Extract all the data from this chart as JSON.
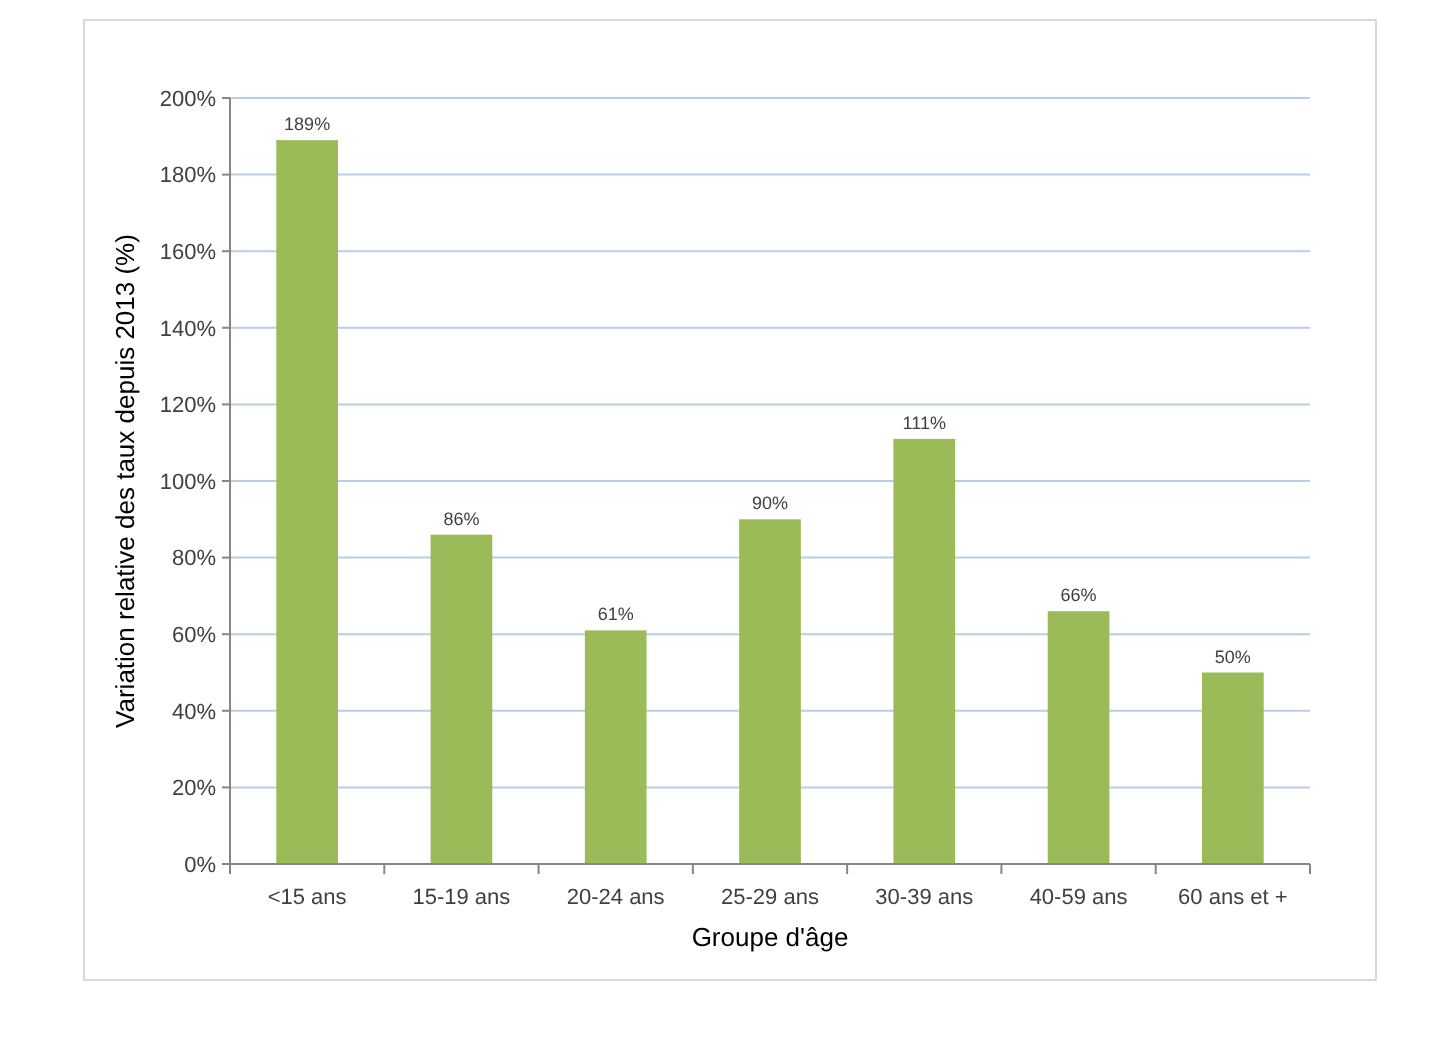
{
  "chart_data": {
    "type": "bar",
    "xlabel": "Groupe d'âge",
    "ylabel": "Variation relative des taux depuis 2013 (%)",
    "categories": [
      "<15 ans",
      "15-19 ans",
      "20-24 ans",
      "25-29 ans",
      "30-39 ans",
      "40-59 ans",
      "60 ans et +"
    ],
    "values": [
      189,
      86,
      61,
      90,
      111,
      66,
      50
    ],
    "value_labels": [
      "189%",
      "86%",
      "61%",
      "90%",
      "111%",
      "66%",
      "50%"
    ],
    "color": "#9bbb59",
    "ylim": [
      0,
      200
    ],
    "yticks": [
      {
        "value": 0,
        "label": "0%"
      },
      {
        "value": 20,
        "label": "20%"
      },
      {
        "value": 40,
        "label": "40%"
      },
      {
        "value": 60,
        "label": "60%"
      },
      {
        "value": 80,
        "label": "80%"
      },
      {
        "value": 100,
        "label": "100%"
      },
      {
        "value": 120,
        "label": "120%"
      },
      {
        "value": 140,
        "label": "140%"
      },
      {
        "value": 160,
        "label": "160%"
      },
      {
        "value": 180,
        "label": "180%"
      },
      {
        "value": 200,
        "label": "200%"
      }
    ],
    "grid": "y"
  }
}
